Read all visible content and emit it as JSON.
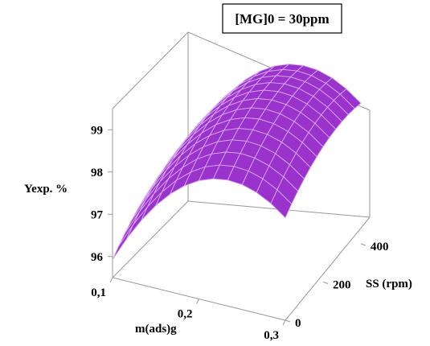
{
  "chart_data": {
    "type": "surface-3d",
    "title": "[MG]0 = 30ppm",
    "xlabel": "m(ads)g",
    "ylabel": "SS (rpm)",
    "zlabel": "Yexp. %",
    "x_ticks": [
      "0,1",
      "0,2",
      "0,3"
    ],
    "y_ticks": [
      "0",
      "200",
      "400"
    ],
    "z_ticks": [
      "96",
      "97",
      "98",
      "99"
    ],
    "xlim": [
      0.1,
      0.3
    ],
    "ylim": [
      0,
      400
    ],
    "zlim": [
      95.5,
      99.5
    ],
    "grid_size": 12,
    "x": [
      0.1,
      0.1167,
      0.1333,
      0.15,
      0.1667,
      0.1833,
      0.2,
      0.2167,
      0.2333,
      0.25,
      0.2667,
      0.2833,
      0.3
    ],
    "y": [
      0,
      33.3,
      66.7,
      100,
      133.3,
      166.7,
      200,
      233.3,
      266.7,
      300,
      333.3,
      366.7,
      400
    ],
    "z_model": {
      "description_values": "quadratic response surface z = c0 + cx*x + cxx*x^2 + cy*y + cyy*y^2",
      "c0": 90.8,
      "cx": 65,
      "cxx": -137.5,
      "cy": 0.0055,
      "cyy": -8.1e-06
    },
    "surface_color": "#9933cc",
    "mesh_color": "#d9a6ef",
    "grid": false,
    "legend": "top-right"
  }
}
